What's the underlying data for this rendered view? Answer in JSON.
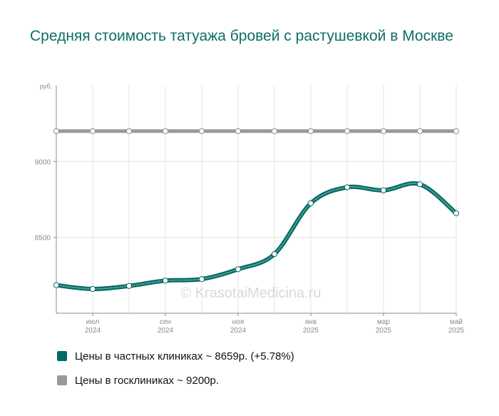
{
  "chart_data": {
    "type": "line",
    "title": "Средняя стоимость татуажа бровей с растушевкой в Москве",
    "ylabel": "руб.",
    "yticks": [
      8500,
      9000
    ],
    "ylim": [
      8000,
      9500
    ],
    "x": [
      "2024-06",
      "2024-07",
      "2024-08",
      "2024-09",
      "2024-10",
      "2024-11",
      "2024-12",
      "2025-01",
      "2025-02",
      "2025-03",
      "2025-04",
      "2025-05"
    ],
    "xticks": [
      {
        "month": "июл",
        "year": "2024",
        "index": 1
      },
      {
        "month": "сен",
        "year": "2024",
        "index": 3
      },
      {
        "month": "ноя",
        "year": "2024",
        "index": 5
      },
      {
        "month": "янв",
        "year": "2025",
        "index": 7
      },
      {
        "month": "мар",
        "year": "2025",
        "index": 9
      },
      {
        "month": "май",
        "year": "2025",
        "index": 11
      }
    ],
    "series": [
      {
        "name": "Цены в частных клиниках",
        "color": "#006b63",
        "values": [
          8185,
          8160,
          8180,
          8215,
          8225,
          8290,
          8390,
          8725,
          8830,
          8810,
          8850,
          8659
        ]
      },
      {
        "name": "Цены в госклиниках",
        "color": "#999999",
        "values": [
          9200,
          9200,
          9200,
          9200,
          9200,
          9200,
          9200,
          9200,
          9200,
          9200,
          9200,
          9200
        ]
      }
    ],
    "grid": true,
    "legend_position": "bottom",
    "watermark": "© KrasotaiMedicina.ru"
  },
  "legend": [
    {
      "label": "Цены в частных клиниках ~ 8659р. (+5.78%)",
      "color": "#006b63"
    },
    {
      "label": "Цены в госклиниках ~ 9200р.",
      "color": "#999999"
    }
  ]
}
